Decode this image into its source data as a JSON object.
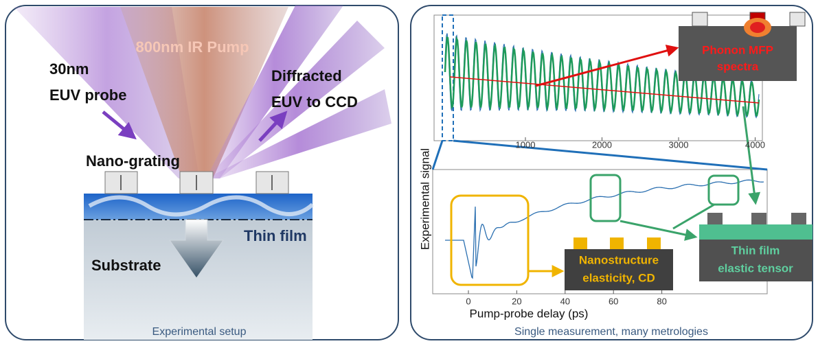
{
  "left_panel": {
    "pump_label": "800nm IR Pump",
    "probe_label": [
      "30nm",
      "EUV probe"
    ],
    "diffracted_label": [
      "Diffracted",
      "EUV to CCD"
    ],
    "grating_label": "Nano-grating",
    "film_label": "Thin film",
    "substrate_label": "Substrate",
    "caption": "Experimental setup"
  },
  "right_panel": {
    "y_axis_label": "Experimental signal",
    "top_plot": {
      "xticks": [
        1000,
        2000,
        3000,
        4000
      ]
    },
    "bottom_plot": {
      "xticks": [
        0,
        20,
        40,
        60,
        80
      ],
      "x_axis_label": "Pump-probe delay (ps)"
    },
    "phonon_inset": [
      "Phonon MFP",
      "spectra"
    ],
    "nano_inset": [
      "Nanostructure",
      "elasticity, CD"
    ],
    "film_inset": [
      "Thin film",
      "elastic tensor"
    ],
    "caption": "Single measurement, many metrologies"
  }
}
